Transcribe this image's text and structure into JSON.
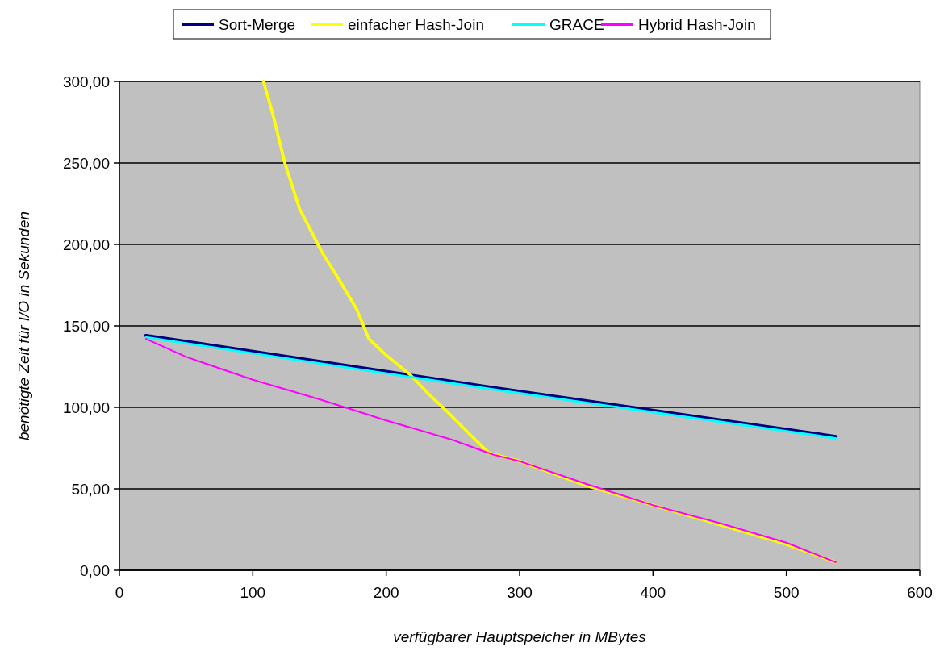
{
  "chart_data": {
    "type": "line",
    "xlabel": "verfügbarer Hauptspeicher in MBytes",
    "ylabel": "benötigte Zeit für I/O in Sekunden",
    "xlim": [
      0,
      600
    ],
    "xticks": [
      0,
      100,
      200,
      300,
      400,
      500,
      600
    ],
    "ylim": [
      0,
      300
    ],
    "yticks": [
      {
        "value": 0,
        "label": "0,00"
      },
      {
        "value": 50,
        "label": "50,00"
      },
      {
        "value": 100,
        "label": "100,00"
      },
      {
        "value": 150,
        "label": "150,00"
      },
      {
        "value": 200,
        "label": "200,00"
      },
      {
        "value": 250,
        "label": "250,00"
      },
      {
        "value": 300,
        "label": "300,00"
      }
    ],
    "grid": "y",
    "legend": "top",
    "marker": "none",
    "line_style": "solid",
    "series": [
      {
        "name": "Sort-Merge",
        "color": "#000080",
        "x": [
          20,
          280,
          537
        ],
        "values": [
          144,
          112,
          82
        ]
      },
      {
        "name": "einfacher Hash-Join",
        "color": "#ffff00",
        "x": [
          108,
          115,
          124,
          135,
          152,
          165,
          178,
          187,
          200,
          218,
          232,
          245,
          262,
          277,
          300,
          350,
          400,
          450,
          500,
          537
        ],
        "values": [
          300,
          280,
          250,
          222,
          195,
          178,
          160,
          142,
          132,
          120,
          108,
          98,
          84,
          72,
          67,
          52,
          40,
          28,
          16,
          5
        ]
      },
      {
        "name": "GRACE",
        "color": "#00ffff",
        "x": [
          20,
          280,
          537
        ],
        "values": [
          143,
          111,
          81
        ]
      },
      {
        "name": "Hybrid Hash-Join",
        "color": "#ff00ff",
        "x": [
          20,
          50,
          100,
          150,
          200,
          250,
          280,
          300,
          350,
          400,
          450,
          500,
          537
        ],
        "values": [
          142,
          131,
          117,
          105,
          92,
          80,
          71,
          67,
          53,
          40,
          29,
          17,
          5
        ]
      }
    ]
  }
}
